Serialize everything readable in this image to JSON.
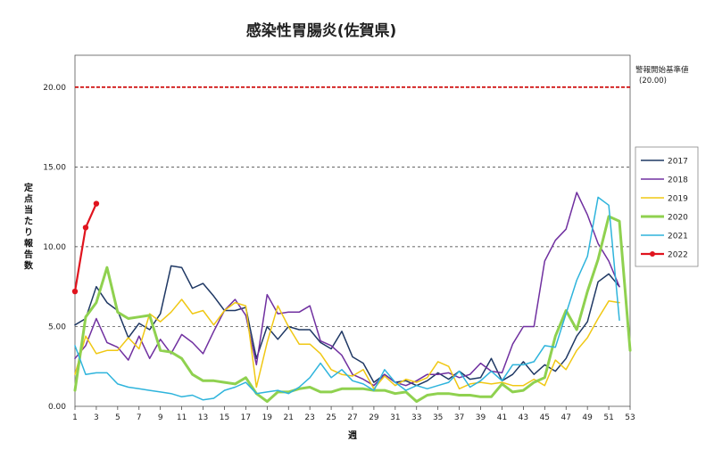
{
  "chart_data": {
    "type": "line",
    "title": "感染性胃腸炎(佐賀県)",
    "xlabel": "週",
    "ylabel": "定点当たり報告数",
    "xlim": [
      1,
      53
    ],
    "ylim": [
      0,
      22
    ],
    "yticks": [
      "0.00",
      "5.00",
      "10.00",
      "15.00",
      "20.00"
    ],
    "xticks": [
      "1",
      "3",
      "5",
      "7",
      "9",
      "11",
      "13",
      "15",
      "17",
      "19",
      "21",
      "23",
      "25",
      "27",
      "29",
      "31",
      "33",
      "35",
      "37",
      "39",
      "41",
      "43",
      "45",
      "47",
      "49",
      "51",
      "53"
    ],
    "grid": "horizontal dashed",
    "legend_position": "right",
    "threshold": {
      "label": "警報開始基準値",
      "value_label": "(20.00)",
      "value": 20,
      "color": "#cc0000"
    },
    "series": [
      {
        "name": "2017",
        "color": "#1f3864",
        "width": 1.5,
        "values": [
          5.1,
          5.5,
          7.5,
          6.5,
          6.0,
          4.3,
          5.2,
          4.8,
          5.8,
          8.8,
          8.7,
          7.4,
          7.7,
          6.9,
          6.0,
          6.0,
          6.2,
          3.0,
          5.0,
          4.2,
          5.0,
          4.8,
          4.8,
          4.0,
          3.6,
          4.7,
          3.1,
          2.7,
          1.5,
          2.0,
          1.5,
          1.6,
          1.3,
          1.6,
          2.1,
          1.7,
          2.2,
          1.7,
          1.8,
          3.0,
          1.6,
          2.0,
          2.8,
          2.0,
          2.6,
          2.2,
          3.0,
          4.4,
          5.3,
          7.8,
          8.3,
          7.5,
          null
        ]
      },
      {
        "name": "2018",
        "color": "#7030a0",
        "width": 1.5,
        "values": [
          3.0,
          3.8,
          5.5,
          4.0,
          3.7,
          2.9,
          4.4,
          3.0,
          4.2,
          3.3,
          4.5,
          4.0,
          3.3,
          4.7,
          6.0,
          6.7,
          5.7,
          2.6,
          7.0,
          5.8,
          5.9,
          5.9,
          6.3,
          4.1,
          3.8,
          3.2,
          2.0,
          1.7,
          1.3,
          2.0,
          1.5,
          1.3,
          1.6,
          2.0,
          2.0,
          2.1,
          1.8,
          2.0,
          2.7,
          2.2,
          2.1,
          3.9,
          5.0,
          5.0,
          9.1,
          10.4,
          11.1,
          13.4,
          12.0,
          10.2,
          9.1,
          7.5,
          null
        ]
      },
      {
        "name": "2019",
        "color": "#f0c814",
        "width": 1.5,
        "values": [
          2.0,
          4.4,
          3.3,
          3.5,
          3.5,
          4.3,
          3.6,
          5.8,
          5.3,
          5.9,
          6.7,
          5.8,
          6.0,
          5.1,
          6.0,
          6.5,
          6.3,
          1.2,
          4.0,
          6.3,
          5.0,
          3.9,
          3.9,
          3.3,
          2.3,
          2.0,
          1.9,
          2.3,
          1.1,
          1.9,
          1.3,
          1.7,
          1.5,
          1.8,
          2.8,
          2.5,
          1.1,
          1.4,
          1.5,
          1.4,
          1.5,
          1.3,
          1.3,
          1.7,
          1.3,
          2.9,
          2.3,
          3.5,
          4.3,
          5.5,
          6.6,
          6.5,
          null
        ]
      },
      {
        "name": "2020",
        "color": "#8fd14f",
        "width": 3.0,
        "values": [
          1.0,
          5.6,
          6.5,
          8.7,
          5.9,
          5.5,
          5.6,
          5.7,
          3.5,
          3.4,
          3.0,
          2.0,
          1.6,
          1.6,
          1.5,
          1.4,
          1.8,
          0.8,
          0.3,
          0.9,
          0.9,
          1.1,
          1.2,
          0.9,
          0.9,
          1.1,
          1.1,
          1.1,
          1.0,
          1.0,
          0.8,
          0.9,
          0.3,
          0.7,
          0.8,
          0.8,
          0.7,
          0.7,
          0.6,
          0.6,
          1.4,
          0.9,
          1.0,
          1.5,
          1.8,
          4.4,
          6.0,
          4.8,
          7.2,
          9.2,
          11.9,
          11.6,
          3.5
        ]
      },
      {
        "name": "2021",
        "color": "#2eb4dc",
        "width": 1.5,
        "values": [
          3.8,
          2.0,
          2.1,
          2.1,
          1.4,
          1.2,
          1.1,
          1.0,
          0.9,
          0.8,
          0.6,
          0.7,
          0.4,
          0.5,
          1.0,
          1.2,
          1.5,
          0.8,
          0.9,
          1.0,
          0.8,
          1.2,
          1.8,
          2.7,
          1.8,
          2.3,
          1.6,
          1.4,
          1.0,
          2.3,
          1.5,
          1.0,
          1.3,
          1.1,
          1.3,
          1.5,
          2.2,
          1.2,
          1.6,
          2.2,
          1.6,
          2.6,
          2.6,
          2.8,
          3.8,
          3.7,
          5.8,
          7.9,
          9.4,
          13.1,
          12.6,
          5.4,
          null
        ]
      },
      {
        "name": "2022",
        "color": "#e0141e",
        "width": 2.2,
        "markers": true,
        "values": [
          7.2,
          11.2,
          12.7,
          null,
          null,
          null,
          null,
          null,
          null,
          null,
          null,
          null,
          null,
          null,
          null,
          null,
          null,
          null,
          null,
          null,
          null,
          null,
          null,
          null,
          null,
          null,
          null,
          null,
          null,
          null,
          null,
          null,
          null,
          null,
          null,
          null,
          null,
          null,
          null,
          null,
          null,
          null,
          null,
          null,
          null,
          null,
          null,
          null,
          null,
          null,
          null,
          null,
          null
        ]
      }
    ]
  }
}
